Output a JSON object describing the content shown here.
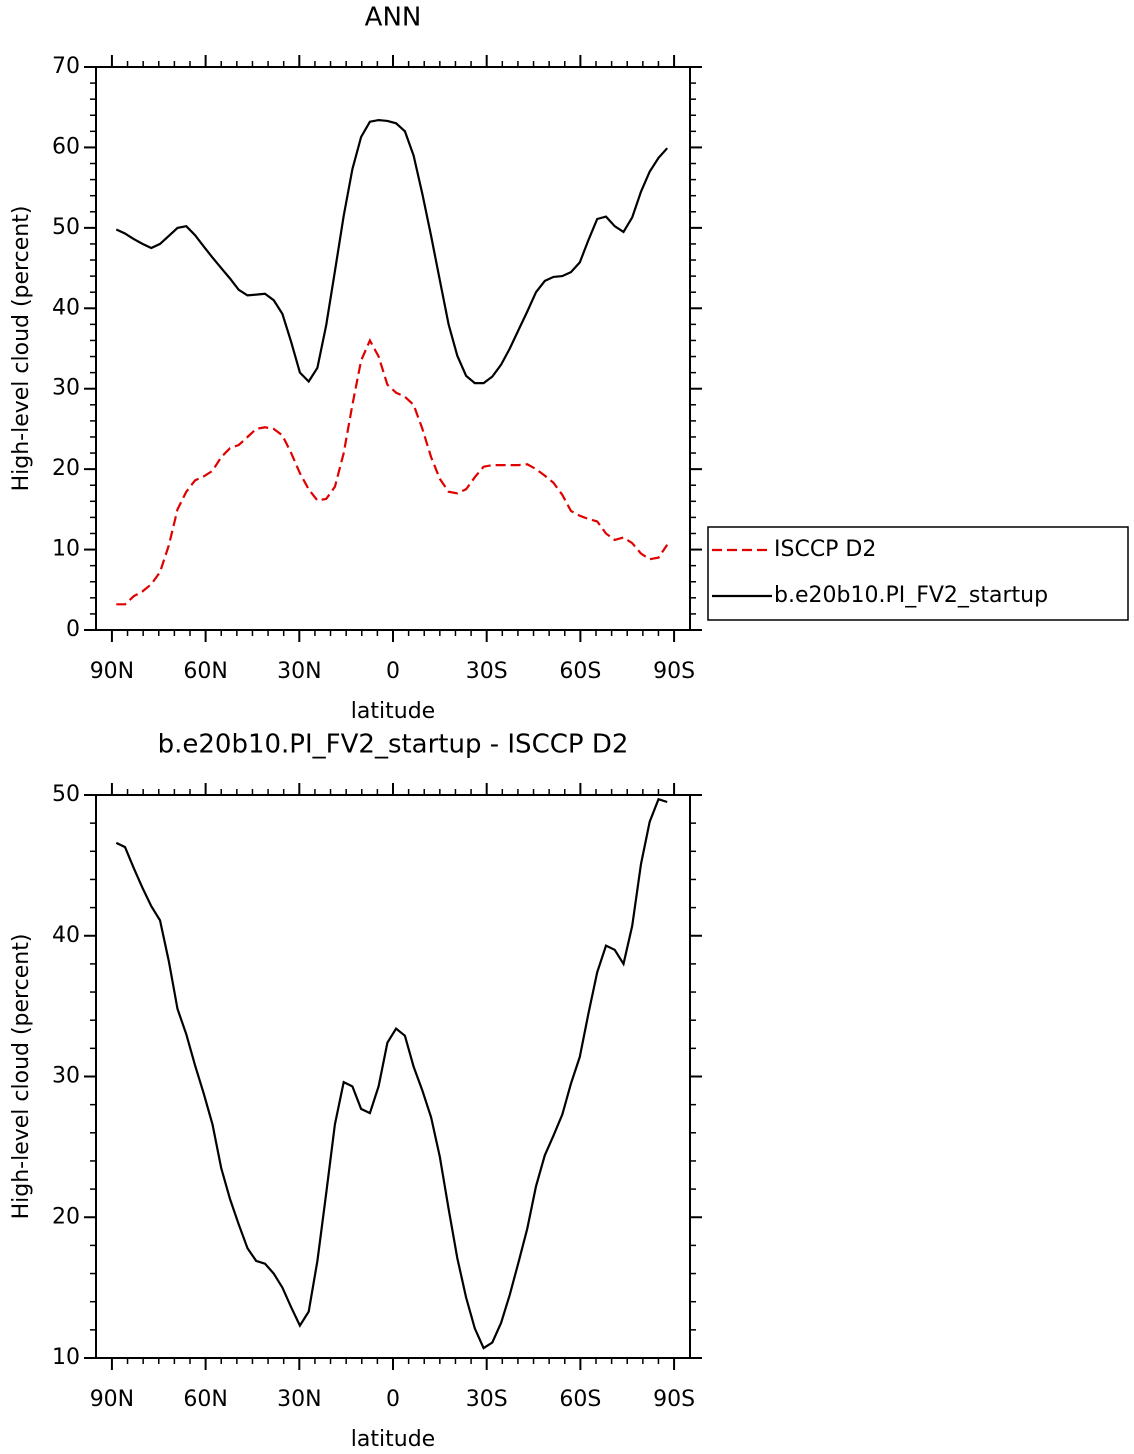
{
  "chart_data": [
    {
      "type": "line",
      "title": "ANN",
      "xlabel": "latitude",
      "ylabel": "High-level cloud (percent)",
      "x": [
        88.6,
        85.8,
        83.0,
        80.2,
        77.4,
        74.6,
        71.8,
        69.0,
        66.2,
        63.4,
        60.6,
        57.8,
        55.0,
        52.2,
        49.4,
        46.6,
        43.8,
        41.0,
        38.2,
        35.4,
        32.6,
        29.8,
        27.0,
        24.2,
        21.4,
        18.6,
        15.8,
        13.0,
        10.2,
        7.4,
        4.6,
        1.8,
        -1.0,
        -3.8,
        -6.6,
        -9.4,
        -12.2,
        -15.0,
        -17.8,
        -20.6,
        -23.4,
        -26.2,
        -29.0,
        -31.8,
        -34.6,
        -37.4,
        -40.2,
        -43.0,
        -45.8,
        -48.6,
        -51.4,
        -54.2,
        -57.0,
        -59.8,
        -62.6,
        -65.4,
        -68.2,
        -71.0,
        -73.8,
        -76.6,
        -79.4,
        -82.2,
        -85.0,
        -87.8
      ],
      "series": [
        {
          "name": "ISCCP D2",
          "color": "#e00000",
          "dashed": true,
          "values": [
            3.2,
            3.2,
            4.2,
            4.8,
            5.7,
            7.2,
            10.5,
            15.0,
            17.2,
            18.6,
            19.1,
            19.8,
            21.5,
            22.6,
            23.0,
            24.0,
            25.0,
            25.2,
            25.0,
            24.2,
            22.0,
            19.5,
            17.5,
            16.1,
            16.3,
            17.8,
            22.0,
            28.0,
            33.5,
            36.0,
            34.0,
            30.5,
            29.5,
            29.0,
            28.0,
            25.0,
            21.5,
            18.8,
            17.2,
            17.0,
            17.5,
            19.0,
            20.3,
            20.5,
            20.5,
            20.5,
            20.5,
            20.6,
            20.0,
            19.2,
            18.3,
            16.8,
            14.8,
            14.2,
            13.8,
            13.5,
            12.0,
            11.2,
            11.5,
            10.8,
            9.5,
            8.8,
            9.0,
            10.6
          ]
        },
        {
          "name": "b.e20b10.PI_FV2_startup",
          "color": "#000000",
          "dashed": false,
          "values": [
            49.8,
            49.3,
            48.6,
            48.0,
            47.5,
            48.0,
            49.0,
            50.0,
            50.2,
            49.1,
            47.7,
            46.3,
            45.0,
            43.7,
            42.3,
            41.6,
            41.7,
            41.8,
            41.0,
            39.3,
            35.8,
            32.0,
            30.9,
            32.6,
            37.9,
            44.6,
            51.5,
            57.3,
            61.3,
            63.2,
            63.4,
            63.3,
            63.0,
            62.0,
            59.0,
            54.2,
            49.0,
            43.5,
            38.0,
            34.1,
            31.6,
            30.7,
            30.7,
            31.5,
            33.0,
            35.0,
            37.3,
            39.6,
            42.0,
            43.4,
            43.9,
            44.0,
            44.5,
            45.7,
            48.5,
            51.1,
            51.4,
            50.2,
            49.5,
            51.3,
            54.5,
            57.0,
            58.7,
            59.9
          ]
        }
      ],
      "xlim": [
        95.1,
        -95.1
      ],
      "xticks": [
        {
          "value": 90,
          "label": "90N"
        },
        {
          "value": 60,
          "label": "60N"
        },
        {
          "value": 30,
          "label": "30N"
        },
        0,
        {
          "value": -30,
          "label": "30S"
        },
        {
          "value": -60,
          "label": "60S"
        },
        {
          "value": -90,
          "label": "90S"
        }
      ],
      "ylim": [
        0,
        70
      ],
      "yticks": [
        0,
        10,
        20,
        30,
        40,
        50,
        60,
        70
      ],
      "legend": "right"
    },
    {
      "type": "line",
      "title": "b.e20b10.PI_FV2_startup - ISCCP D2",
      "xlabel": "latitude",
      "ylabel": "High-level cloud (percent)",
      "x": [
        88.6,
        85.8,
        83.0,
        80.2,
        77.4,
        74.6,
        71.8,
        69.0,
        66.2,
        63.4,
        60.6,
        57.8,
        55.0,
        52.2,
        49.4,
        46.6,
        43.8,
        41.0,
        38.2,
        35.4,
        32.6,
        29.8,
        27.0,
        24.2,
        21.4,
        18.6,
        15.8,
        13.0,
        10.2,
        7.4,
        4.6,
        1.8,
        -1.0,
        -3.8,
        -6.6,
        -9.4,
        -12.2,
        -15.0,
        -17.8,
        -20.6,
        -23.4,
        -26.2,
        -29.0,
        -31.8,
        -34.6,
        -37.4,
        -40.2,
        -43.0,
        -45.8,
        -48.6,
        -51.4,
        -54.2,
        -57.0,
        -59.8,
        -62.6,
        -65.4,
        -68.2,
        -71.0,
        -73.8,
        -76.6,
        -79.4,
        -82.2,
        -85.0,
        -87.8
      ],
      "color": "#000000",
      "values": [
        46.6,
        46.3,
        44.8,
        43.4,
        42.1,
        41.1,
        38.2,
        34.8,
        33.0,
        30.8,
        28.8,
        26.6,
        23.5,
        21.3,
        19.5,
        17.8,
        16.9,
        16.7,
        16.0,
        15.0,
        13.6,
        12.3,
        13.3,
        16.9,
        21.7,
        26.6,
        29.6,
        29.3,
        27.7,
        27.4,
        29.3,
        32.4,
        33.4,
        32.9,
        30.7,
        29.0,
        27.1,
        24.3,
        20.6,
        17.1,
        14.3,
        12.1,
        10.7,
        11.1,
        12.5,
        14.5,
        16.8,
        19.2,
        22.2,
        24.4,
        25.8,
        27.3,
        29.5,
        31.4,
        34.5,
        37.4,
        39.3,
        39.0,
        38.0,
        40.7,
        45.1,
        48.1,
        49.7,
        49.5
      ],
      "xlim": [
        95.1,
        -95.1
      ],
      "xticks": [
        {
          "value": 90,
          "label": "90N"
        },
        {
          "value": 60,
          "label": "60N"
        },
        {
          "value": 30,
          "label": "30N"
        },
        0,
        {
          "value": -30,
          "label": "30S"
        },
        {
          "value": -60,
          "label": "60S"
        },
        {
          "value": -90,
          "label": "90S"
        }
      ],
      "ylim": [
        10,
        50
      ],
      "yticks": [
        10,
        20,
        30,
        40,
        50
      ]
    }
  ]
}
